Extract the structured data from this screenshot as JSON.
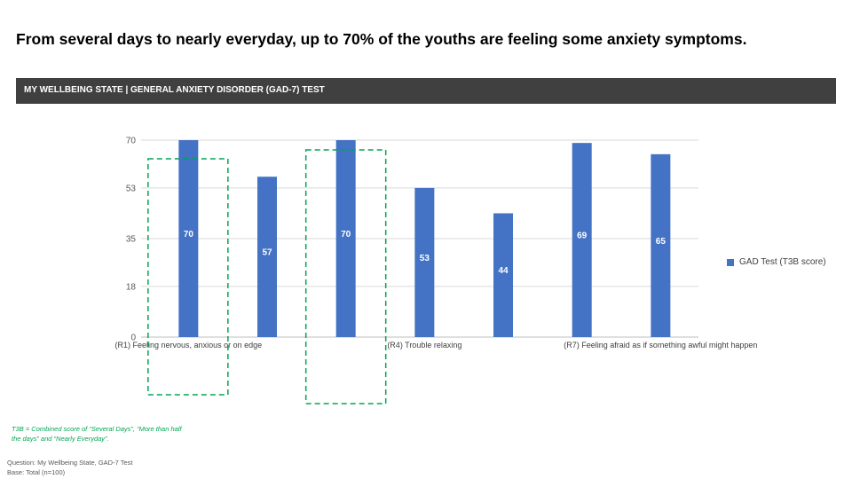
{
  "headline": "From several days to nearly everyday, up to 70% of the youths are feeling some anxiety symptoms.",
  "banner": "MY WELLBEING STATE | GENERAL ANXIETY DISORDER (GAD-7) TEST",
  "chart_data": {
    "type": "bar",
    "categories": [
      "(R1) Feeling nervous, anxious or on edge",
      "",
      "",
      "(R4) Trouble relaxing",
      "",
      "",
      "(R7) Feeling afraid as if something awful might happen"
    ],
    "series": [
      {
        "name": "GAD Test  (T3B score)",
        "values": [
          70,
          57,
          70,
          53,
          44,
          69,
          65
        ]
      }
    ],
    "ylim": [
      0,
      70
    ],
    "yticks": [
      "0",
      "18",
      "35",
      "53",
      "70"
    ],
    "highlighted_categories": [
      0,
      2
    ],
    "grid": true,
    "legend_position": "right",
    "bar_color": "#4472c4",
    "highlight_color": "#00a651"
  },
  "footnote": "T3B = Combined score of “Several Days”, “More than half the days” and “Nearly Everyday”.",
  "question": "Question: My Wellbeing State, GAD-7  Test",
  "base": "Base: Total (n=100)"
}
